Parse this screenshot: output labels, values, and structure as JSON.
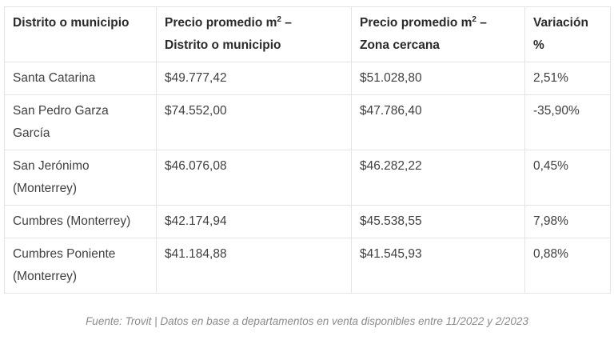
{
  "table": {
    "headers": [
      {
        "text": "Distrito o municipio",
        "sup": ""
      },
      {
        "text": "Precio promedio m",
        "sup": "2",
        "after": " –Distrito o municipio"
      },
      {
        "text": "Precio promedio m",
        "sup": "2",
        "after": " –Zona cercana"
      },
      {
        "text": "Variación %",
        "sup": ""
      }
    ],
    "header_lines": {
      "h1": "Distrito o municipio",
      "h2_a": "Precio promedio m",
      "h2_sup": "2",
      "h2_b": " –",
      "h2_c": "Distrito o municipio",
      "h3_a": "Precio promedio m",
      "h3_sup": "2",
      "h3_b": " –",
      "h3_c": "Zona cercana",
      "h4_a": "Variación",
      "h4_b": "%"
    },
    "rows": [
      {
        "district": "Santa Catarina",
        "district_b": "",
        "price": "$49.777,42",
        "nearby": "$51.028,80",
        "variation": "2,51%"
      },
      {
        "district": "San Pedro Garza",
        "district_b": "García",
        "price": "$74.552,00",
        "nearby": "$47.786,40",
        "variation": "-35,90%"
      },
      {
        "district": "San Jerónimo",
        "district_b": "(Monterrey)",
        "price": "$46.076,08",
        "nearby": "$46.282,22",
        "variation": "0,45%"
      },
      {
        "district": "Cumbres (Monterrey)",
        "district_b": "",
        "price": "$42.174,94",
        "nearby": "$45.538,55",
        "variation": "7,98%"
      },
      {
        "district": "Cumbres Poniente",
        "district_b": "(Monterrey)",
        "price": "$41.184,88",
        "nearby": "$41.545,93",
        "variation": "0,88%"
      }
    ]
  },
  "source": "Fuente: Trovit | Datos en base a departamentos en venta disponibles entre 11/2022 y 2/2023"
}
